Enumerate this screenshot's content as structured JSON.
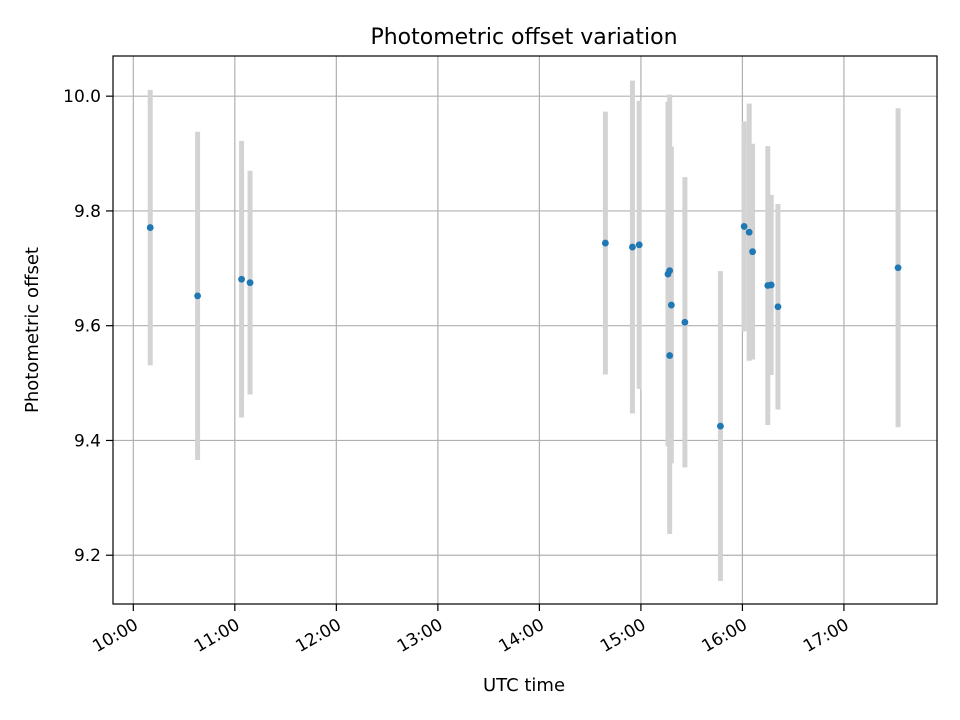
{
  "chart_data": {
    "type": "scatter",
    "title": "Photometric offset variation",
    "xlabel": "UTC time",
    "ylabel": "Photometric offset",
    "x_format": "time HH:MM (UTC)",
    "xlim": [
      "09:48",
      "17:55"
    ],
    "ylim": [
      9.115,
      10.07
    ],
    "x_ticks": [
      "10:00",
      "11:00",
      "12:00",
      "13:00",
      "14:00",
      "15:00",
      "16:00",
      "17:00"
    ],
    "y_ticks": [
      9.2,
      9.4,
      9.6,
      9.8,
      10.0
    ],
    "y_tick_labels": [
      "9.2",
      "9.4",
      "9.6",
      "9.8",
      "10.0"
    ],
    "grid": true,
    "point_color": "#1f77b4",
    "errorbar_color": "#d3d3d3",
    "series": [
      {
        "points": [
          {
            "x": "10:10",
            "y": 9.771,
            "err": 0.24
          },
          {
            "x": "10:38",
            "y": 9.652,
            "err": 0.286
          },
          {
            "x": "11:04",
            "y": 9.681,
            "err": 0.241
          },
          {
            "x": "11:09",
            "y": 9.675,
            "err": 0.195
          },
          {
            "x": "14:39",
            "y": 9.744,
            "err": 0.229
          },
          {
            "x": "14:55",
            "y": 9.737,
            "err": 0.29
          },
          {
            "x": "14:59",
            "y": 9.741,
            "err": 0.251
          },
          {
            "x": "15:16",
            "y": 9.69,
            "err": 0.3
          },
          {
            "x": "15:17",
            "y": 9.696,
            "err": 0.307
          },
          {
            "x": "15:17",
            "y": 9.548,
            "err": 0.311
          },
          {
            "x": "15:18",
            "y": 9.636,
            "err": 0.276
          },
          {
            "x": "15:26",
            "y": 9.606,
            "err": 0.253
          },
          {
            "x": "15:47",
            "y": 9.425,
            "err": 0.27
          },
          {
            "x": "16:01",
            "y": 9.773,
            "err": 0.183
          },
          {
            "x": "16:04",
            "y": 9.763,
            "err": 0.224
          },
          {
            "x": "16:06",
            "y": 9.729,
            "err": 0.188
          },
          {
            "x": "16:15",
            "y": 9.67,
            "err": 0.243
          },
          {
            "x": "16:17",
            "y": 9.671,
            "err": 0.157
          },
          {
            "x": "16:21",
            "y": 9.633,
            "err": 0.179
          },
          {
            "x": "17:32",
            "y": 9.701,
            "err": 0.278
          }
        ]
      }
    ]
  }
}
